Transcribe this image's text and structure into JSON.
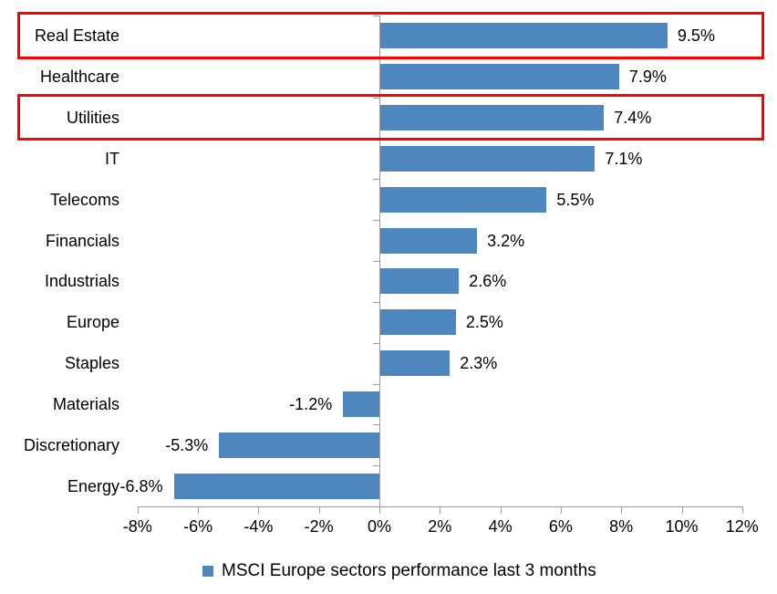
{
  "chart_data": {
    "type": "bar",
    "orientation": "horizontal",
    "title": "",
    "legend": "MSCI Europe sectors performance last 3 months",
    "legend_position": "bottom",
    "categories": [
      "Real Estate",
      "Healthcare",
      "Utilities",
      "IT",
      "Telecoms",
      "Financials",
      "Industrials",
      "Europe",
      "Staples",
      "Materials",
      "Discretionary",
      "Energy"
    ],
    "values": [
      9.5,
      7.9,
      7.4,
      7.1,
      5.5,
      3.2,
      2.6,
      2.5,
      2.3,
      -1.2,
      -5.3,
      -6.8
    ],
    "value_labels": [
      "9.5%",
      "7.9%",
      "7.4%",
      "7.1%",
      "5.5%",
      "3.2%",
      "2.6%",
      "2.5%",
      "2.3%",
      "-1.2%",
      "-5.3%",
      "-6.8%"
    ],
    "x_tick_labels": [
      "-8%",
      "-6%",
      "-4%",
      "-2%",
      "0%",
      "2%",
      "4%",
      "6%",
      "8%",
      "10%",
      "12%"
    ],
    "x_tick_values": [
      -8,
      -6,
      -4,
      -2,
      0,
      2,
      4,
      6,
      8,
      10,
      12
    ],
    "xlim": [
      -8,
      12
    ],
    "grid": false,
    "bar_color": "#4E86BE",
    "axis_color": "#9B9B9B",
    "text_color": "#000000",
    "highlight_color": "#FF0000",
    "highlighted_categories": [
      "Real Estate",
      "Utilities"
    ]
  }
}
